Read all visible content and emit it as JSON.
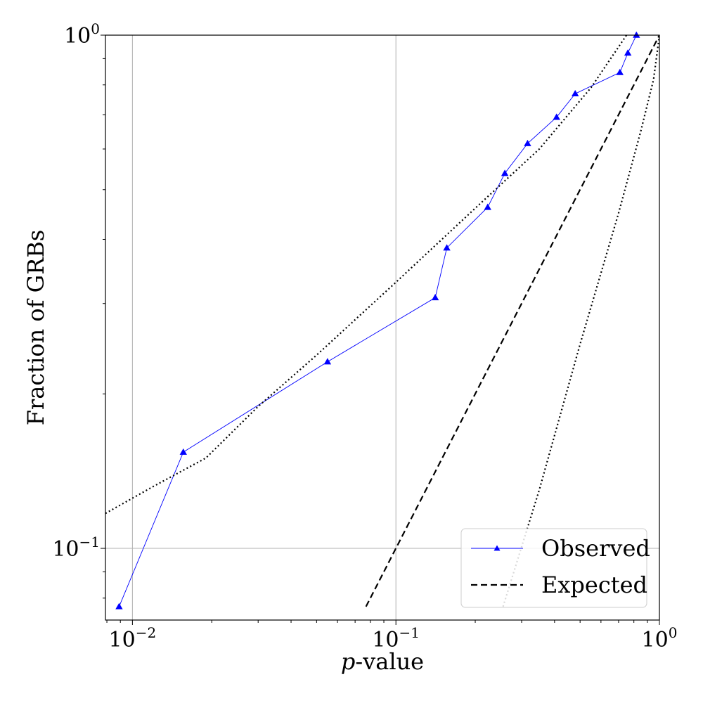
{
  "chart_data": {
    "type": "line",
    "xscale": "log",
    "yscale": "log",
    "xlim": [
      0.0079,
      1.0
    ],
    "ylim": [
      0.0725,
      1.0
    ],
    "grid": true,
    "xlabel": {
      "italic": "p",
      "rest": "-value"
    },
    "ylabel": "Fraction of GRBs",
    "x_ticks": [
      {
        "value": 0.01,
        "base": "10",
        "exp": "−2"
      },
      {
        "value": 0.1,
        "base": "10",
        "exp": "−1"
      },
      {
        "value": 1.0,
        "base": "10",
        "exp": "0"
      }
    ],
    "y_ticks": [
      {
        "value": 0.1,
        "base": "10",
        "exp": "−1"
      },
      {
        "value": 1.0,
        "base": "10",
        "exp": "0"
      }
    ],
    "legend_position": "lower-right",
    "series": [
      {
        "name": "Observed",
        "style": "solid",
        "marker": "triangle",
        "color": "#0000ff",
        "x": [
          0.0089,
          0.0156,
          0.055,
          0.141,
          0.156,
          0.223,
          0.259,
          0.316,
          0.407,
          0.479,
          0.708,
          0.759,
          0.818
        ],
        "y": [
          0.077,
          0.154,
          0.231,
          0.308,
          0.385,
          0.462,
          0.538,
          0.615,
          0.692,
          0.769,
          0.846,
          0.923,
          1.0
        ]
      },
      {
        "name": "Expected",
        "style": "dashed",
        "color": "#000000",
        "x": [
          0.077,
          1.0
        ],
        "y": [
          0.077,
          1.0
        ]
      },
      {
        "style": "dotted",
        "color": "#000000",
        "x": [
          0.0079,
          0.012,
          0.019,
          0.03,
          0.05,
          0.1,
          0.2,
          0.35,
          0.55,
          0.75
        ],
        "y": [
          0.117,
          0.132,
          0.15,
          0.189,
          0.238,
          0.33,
          0.46,
          0.6,
          0.79,
          1.0
        ]
      },
      {
        "style": "dotted",
        "color": "#000000",
        "x": [
          0.255,
          0.35,
          0.5,
          0.7,
          0.85,
          0.95,
          1.0
        ],
        "y": [
          0.077,
          0.13,
          0.25,
          0.45,
          0.65,
          0.82,
          1.0
        ]
      }
    ],
    "legend": [
      {
        "label": "Observed",
        "series": 0
      },
      {
        "label": "Expected",
        "series": 1
      }
    ]
  }
}
